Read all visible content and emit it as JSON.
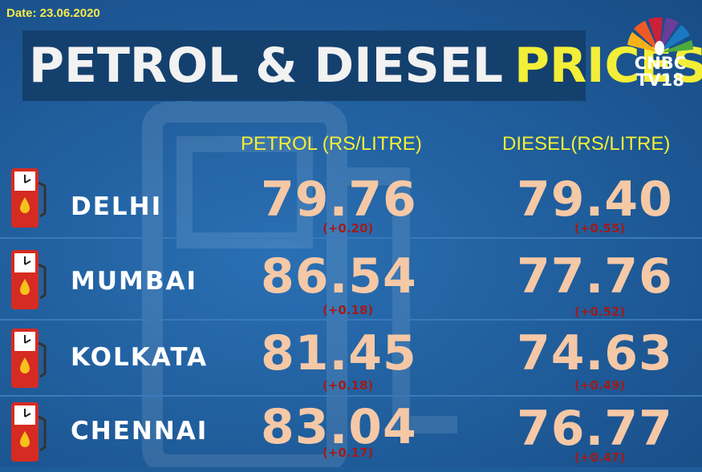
{
  "date": "Date: 23.06.2020",
  "title": {
    "part1": "PETROL & DIESEL",
    "part2": "PRICES"
  },
  "logo": {
    "line1": "CNBC",
    "line2": "TV18",
    "icon": "peacock-icon"
  },
  "columns": {
    "petrol": "PETROL (RS/LITRE)",
    "diesel": "DIESEL(RS/LITRE)"
  },
  "rows": [
    {
      "city": "DELHI",
      "petrol": "79.76",
      "petrol_change": "(+0.20)",
      "diesel": "79.40",
      "diesel_change": "(+0.55)"
    },
    {
      "city": "MUMBAI",
      "petrol": "86.54",
      "petrol_change": "(+0.18)",
      "diesel": "77.76",
      "diesel_change": "(+0.52)"
    },
    {
      "city": "KOLKATA",
      "petrol": "81.45",
      "petrol_change": "(+0.18)",
      "diesel": "74.63",
      "diesel_change": "(+0.49)"
    },
    {
      "city": "CHENNAI",
      "petrol": "83.04",
      "petrol_change": "(+0.17)",
      "diesel": "76.77",
      "diesel_change": "(+0.47)"
    }
  ],
  "icons": {
    "pump": "fuel-pump-icon"
  },
  "colors": {
    "background": "#1f5c9a",
    "title_accent": "#f3ee38",
    "price": "#f5c8a6",
    "change": "#9e1c1c",
    "pump": "#d62b22"
  }
}
